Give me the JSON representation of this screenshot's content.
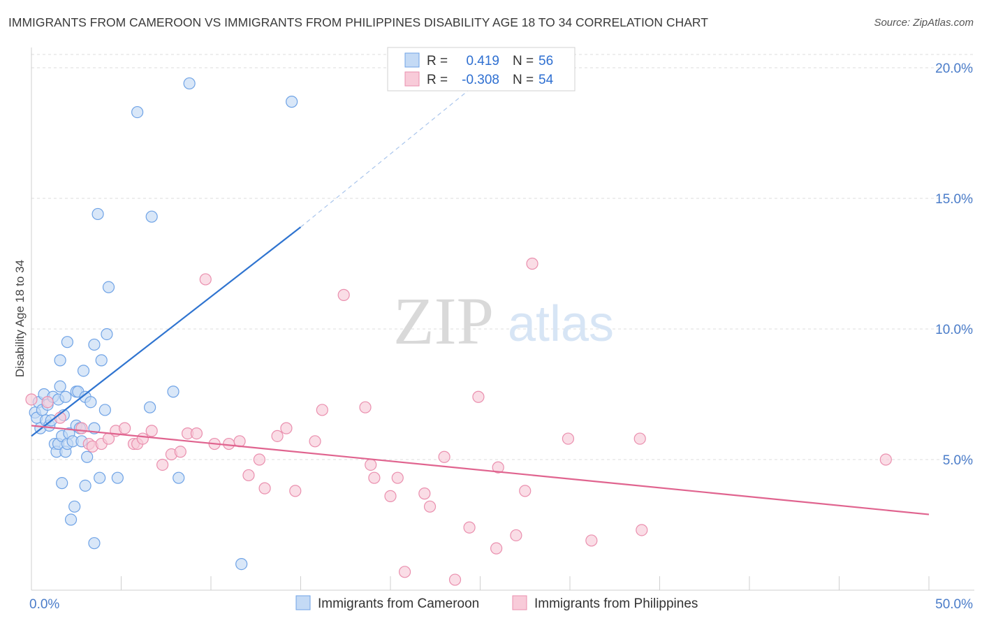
{
  "title": "IMMIGRANTS FROM CAMEROON VS IMMIGRANTS FROM PHILIPPINES DISABILITY AGE 18 TO 34 CORRELATION CHART",
  "source": "Source: ZipAtlas.com",
  "watermark": {
    "zip": "ZIP",
    "atlas": "atlas"
  },
  "colors": {
    "blue": "#6fa3e6",
    "blue_fill": "#c4daf5",
    "blue_line": "#2f74d0",
    "pink": "#ea8fae",
    "pink_fill": "#f8cbd9",
    "pink_line": "#e0648f",
    "grid": "#dcdcdc",
    "tick_text": "#4a7cc9"
  },
  "legend": {
    "rows": [
      {
        "r_label": "R =",
        "r_value": "0.419",
        "n_label": "N =",
        "n_value": "56"
      },
      {
        "r_label": "R =",
        "r_value": "-0.308",
        "n_label": "N =",
        "n_value": "54"
      }
    ]
  },
  "chart_data": {
    "type": "scatter",
    "title": "IMMIGRANTS FROM CAMEROON VS IMMIGRANTS FROM PHILIPPINES DISABILITY AGE 18 TO 34 CORRELATION CHART",
    "xlabel": "",
    "ylabel": "Disability Age 18 to 34",
    "xlim": [
      0,
      50
    ],
    "ylim": [
      0,
      20.5
    ],
    "x_tick_labels": [
      {
        "value": 0,
        "label": "0.0%"
      },
      {
        "value": 50,
        "label": "50.0%"
      }
    ],
    "y_tick_labels": [
      {
        "value": 5,
        "label": "5.0%"
      },
      {
        "value": 10,
        "label": "10.0%"
      },
      {
        "value": 15,
        "label": "15.0%"
      },
      {
        "value": 20,
        "label": "20.0%"
      }
    ],
    "x_minor_ticks": [
      0,
      5,
      10,
      15,
      20,
      25,
      30,
      35,
      40,
      45,
      50
    ],
    "grid": true,
    "series": [
      {
        "name": "Immigrants from Cameroon",
        "r": 0.419,
        "n": 56,
        "trend": {
          "x0": 0,
          "y0": 5.9,
          "x1": 15,
          "y1": 13.9,
          "dash_x1": 25,
          "dash_y1": 19.5
        },
        "points": [
          [
            0.2,
            6.8
          ],
          [
            0.3,
            6.6
          ],
          [
            0.4,
            7.2
          ],
          [
            0.5,
            6.2
          ],
          [
            0.6,
            6.9
          ],
          [
            0.7,
            7.5
          ],
          [
            0.8,
            6.5
          ],
          [
            0.9,
            7.1
          ],
          [
            1.0,
            6.3
          ],
          [
            1.1,
            6.5
          ],
          [
            1.2,
            7.4
          ],
          [
            1.3,
            5.6
          ],
          [
            1.4,
            5.3
          ],
          [
            1.5,
            5.6
          ],
          [
            1.5,
            7.3
          ],
          [
            1.6,
            7.8
          ],
          [
            1.6,
            8.8
          ],
          [
            1.7,
            4.1
          ],
          [
            1.7,
            5.9
          ],
          [
            1.8,
            6.7
          ],
          [
            1.9,
            5.3
          ],
          [
            1.9,
            7.4
          ],
          [
            2.0,
            5.6
          ],
          [
            2.0,
            9.5
          ],
          [
            2.1,
            6.0
          ],
          [
            2.2,
            2.7
          ],
          [
            2.3,
            5.7
          ],
          [
            2.4,
            3.2
          ],
          [
            2.5,
            6.3
          ],
          [
            2.5,
            7.6
          ],
          [
            2.6,
            7.6
          ],
          [
            2.7,
            6.2
          ],
          [
            2.8,
            5.7
          ],
          [
            2.9,
            8.4
          ],
          [
            3.0,
            4.0
          ],
          [
            3.0,
            7.4
          ],
          [
            3.1,
            5.1
          ],
          [
            3.3,
            7.2
          ],
          [
            3.5,
            1.8
          ],
          [
            3.5,
            9.4
          ],
          [
            3.7,
            14.4
          ],
          [
            3.8,
            4.3
          ],
          [
            3.9,
            8.8
          ],
          [
            4.1,
            6.9
          ],
          [
            4.2,
            9.8
          ],
          [
            4.3,
            11.6
          ],
          [
            4.8,
            4.3
          ],
          [
            5.9,
            18.3
          ],
          [
            6.6,
            7.0
          ],
          [
            6.7,
            14.3
          ],
          [
            7.9,
            7.6
          ],
          [
            8.2,
            4.3
          ],
          [
            8.8,
            19.4
          ],
          [
            11.7,
            1.0
          ],
          [
            14.5,
            18.7
          ],
          [
            3.5,
            6.2
          ]
        ]
      },
      {
        "name": "Immigrants from Philippines",
        "r": -0.308,
        "n": 54,
        "trend": {
          "x0": 0,
          "y0": 6.3,
          "x1": 50,
          "y1": 2.9
        },
        "points": [
          [
            0.0,
            7.3
          ],
          [
            0.9,
            7.2
          ],
          [
            1.6,
            6.6
          ],
          [
            2.8,
            6.2
          ],
          [
            3.2,
            5.6
          ],
          [
            3.4,
            5.5
          ],
          [
            3.9,
            5.6
          ],
          [
            4.3,
            5.8
          ],
          [
            4.7,
            6.1
          ],
          [
            5.2,
            6.2
          ],
          [
            5.7,
            5.6
          ],
          [
            5.9,
            5.6
          ],
          [
            6.2,
            5.8
          ],
          [
            6.7,
            6.1
          ],
          [
            7.3,
            4.8
          ],
          [
            7.8,
            5.2
          ],
          [
            8.3,
            5.3
          ],
          [
            8.7,
            6.0
          ],
          [
            9.2,
            6.0
          ],
          [
            9.7,
            11.9
          ],
          [
            10.2,
            5.6
          ],
          [
            11.0,
            5.6
          ],
          [
            11.6,
            5.7
          ],
          [
            12.1,
            4.4
          ],
          [
            12.7,
            5.0
          ],
          [
            13.0,
            3.9
          ],
          [
            13.7,
            5.9
          ],
          [
            14.2,
            6.2
          ],
          [
            14.7,
            3.8
          ],
          [
            15.8,
            5.7
          ],
          [
            16.2,
            6.9
          ],
          [
            17.4,
            11.3
          ],
          [
            18.6,
            7.0
          ],
          [
            18.9,
            4.8
          ],
          [
            19.1,
            4.3
          ],
          [
            20.0,
            3.6
          ],
          [
            20.4,
            4.3
          ],
          [
            20.8,
            0.7
          ],
          [
            21.9,
            3.7
          ],
          [
            22.2,
            3.2
          ],
          [
            23.0,
            5.1
          ],
          [
            23.6,
            0.4
          ],
          [
            24.4,
            2.4
          ],
          [
            24.9,
            7.4
          ],
          [
            25.9,
            1.6
          ],
          [
            26.0,
            4.7
          ],
          [
            27.0,
            2.1
          ],
          [
            27.5,
            3.8
          ],
          [
            27.9,
            12.5
          ],
          [
            29.9,
            5.8
          ],
          [
            31.2,
            1.9
          ],
          [
            33.9,
            5.8
          ],
          [
            34.0,
            2.3
          ],
          [
            47.6,
            5.0
          ]
        ]
      }
    ]
  },
  "bottom_legend": [
    "Immigrants from Cameroon",
    "Immigrants from Philippines"
  ]
}
